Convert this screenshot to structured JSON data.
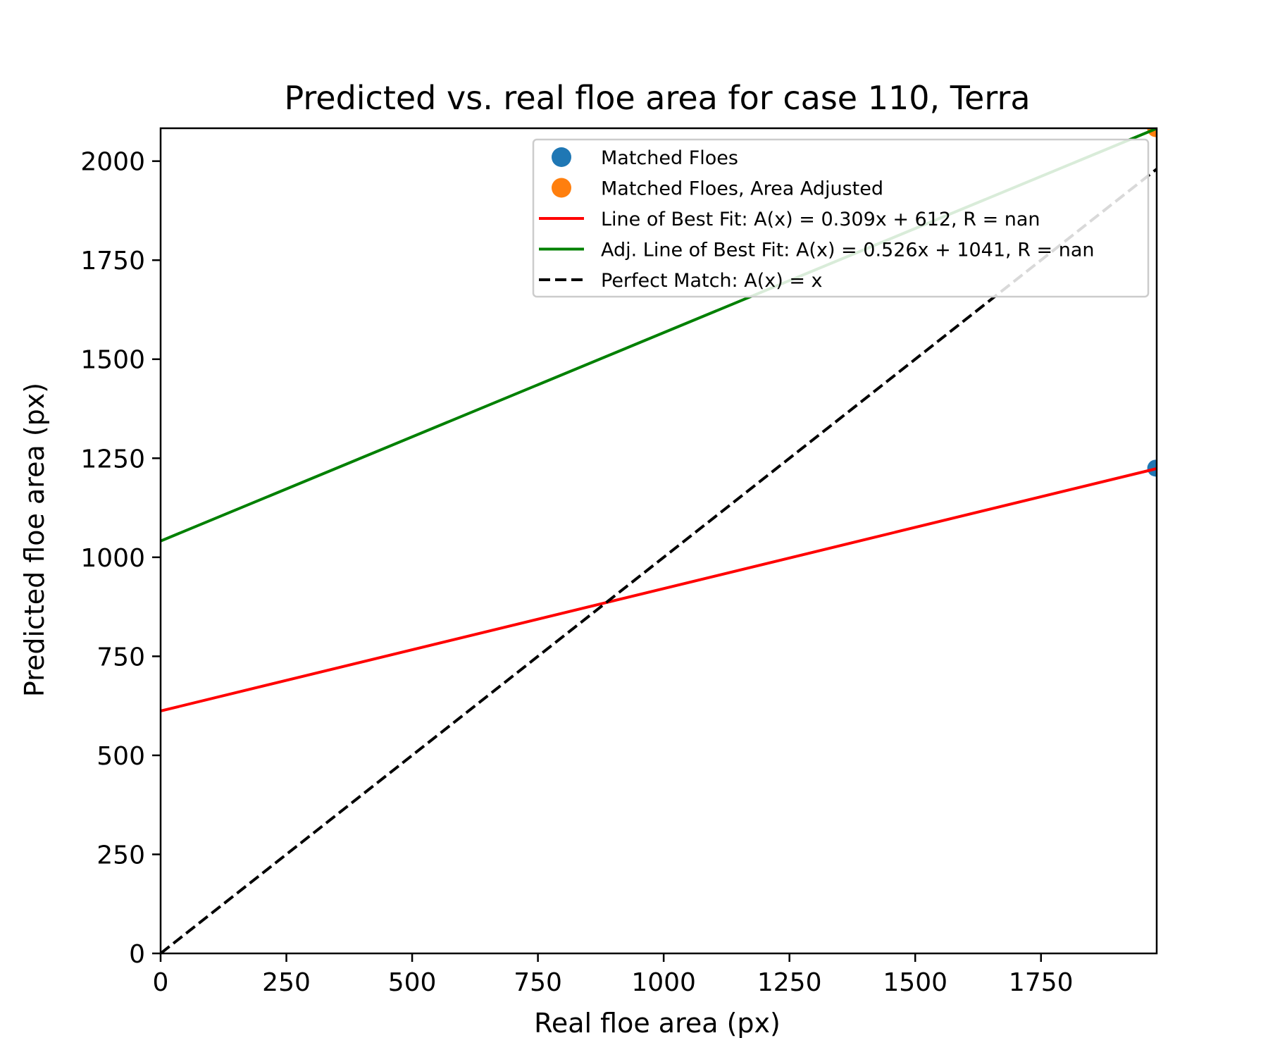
{
  "chart_data": {
    "type": "scatter",
    "title": "Predicted vs. real floe area  for case 110, Terra",
    "xlabel": "Real floe area (px)",
    "ylabel": "Predicted floe area (px)",
    "xlim": [
      0,
      1980
    ],
    "ylim": [
      0,
      2083
    ],
    "xticks": [
      0,
      250,
      500,
      750,
      1000,
      1250,
      1500,
      1750
    ],
    "yticks": [
      0,
      250,
      500,
      750,
      1000,
      1250,
      1500,
      1750,
      2000
    ],
    "xtick_labels": [
      "0",
      "250",
      "500",
      "750",
      "1000",
      "1250",
      "1500",
      "1750"
    ],
    "ytick_labels": [
      "0",
      "250",
      "500",
      "750",
      "1000",
      "1250",
      "1500",
      "1750",
      "2000"
    ],
    "legend_position": "upper-right",
    "grid": false,
    "series": [
      {
        "name": "Matched Floes",
        "kind": "scatter",
        "color": "#1f77b4",
        "points": [
          {
            "x": 1978,
            "y": 1225
          }
        ]
      },
      {
        "name": "Matched Floes, Area Adjusted",
        "kind": "scatter",
        "color": "#ff7f0e",
        "points": [
          {
            "x": 1978,
            "y": 2082
          }
        ]
      },
      {
        "name": "Line of Best Fit: A(x) = 0.309x + 612, R = nan",
        "kind": "line",
        "color": "#ff0000",
        "slope": 0.309,
        "intercept": 612
      },
      {
        "name": "Adj. Line of Best Fit: A(x) = 0.526x + 1041, R = nan",
        "kind": "line",
        "color": "#008000",
        "slope": 0.526,
        "intercept": 1041
      },
      {
        "name": "Perfect Match: A(x) = x",
        "kind": "dashed",
        "color": "#000000",
        "slope": 1,
        "intercept": 0
      }
    ]
  }
}
